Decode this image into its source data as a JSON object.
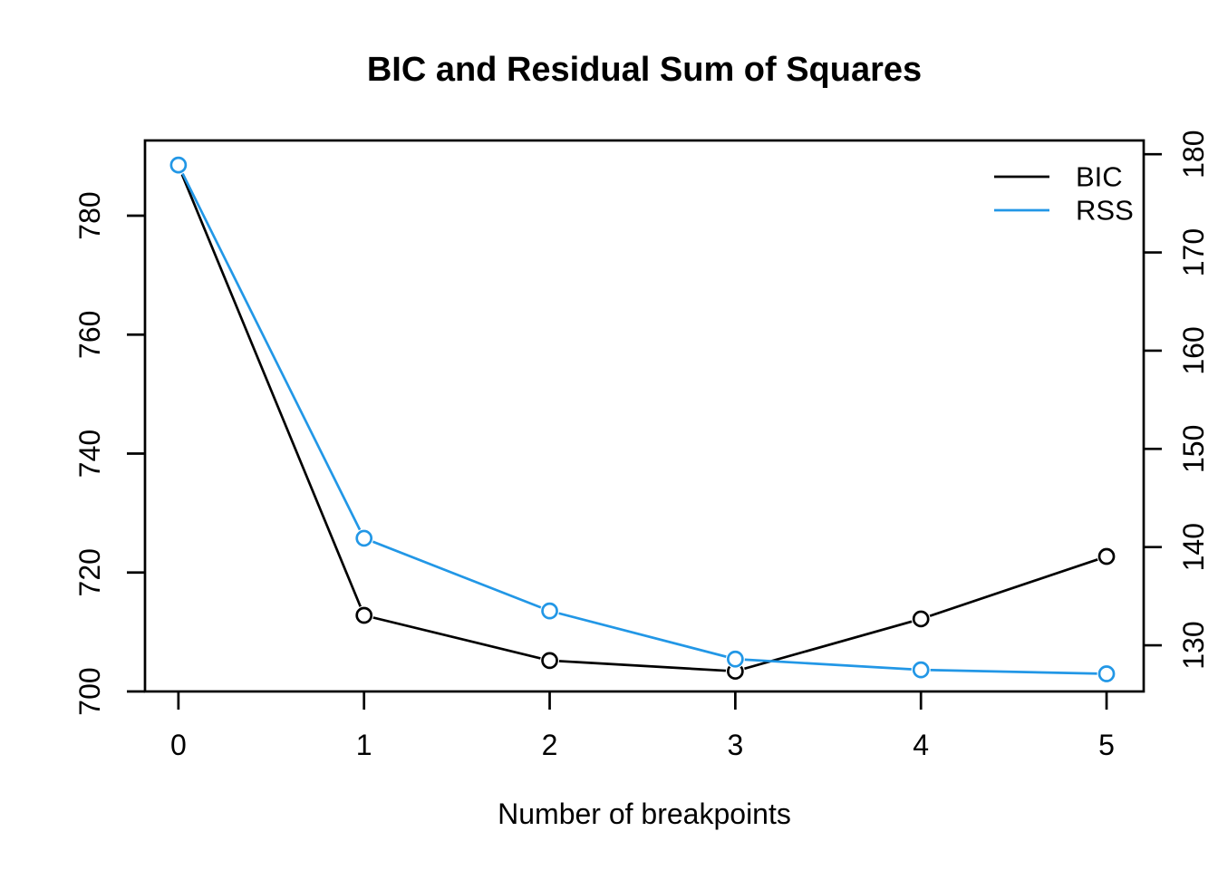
{
  "chart_data": {
    "type": "line",
    "title": "BIC and Residual Sum of Squares",
    "xlabel": "Number of breakpoints",
    "ylabel_left": "",
    "ylabel_right": "",
    "x": [
      0,
      1,
      2,
      3,
      4,
      5
    ],
    "x_ticks": [
      0,
      1,
      2,
      3,
      4,
      5
    ],
    "xlim": [
      -0.18,
      5.2
    ],
    "series": [
      {
        "name": "BIC",
        "color": "#000000",
        "axis": "left",
        "marker": "open-circle",
        "values": [
          788.4,
          712.8,
          705.2,
          703.4,
          712.2,
          722.7
        ]
      },
      {
        "name": "RSS",
        "color": "#2297E6",
        "axis": "right",
        "marker": "open-circle",
        "values": [
          178.9,
          140.9,
          133.5,
          128.6,
          127.5,
          127.1
        ]
      }
    ],
    "left_axis": {
      "ticks": [
        700,
        720,
        740,
        760,
        780
      ],
      "lim": [
        700,
        792.65
      ]
    },
    "right_axis": {
      "ticks": [
        130,
        140,
        150,
        160,
        170,
        180
      ],
      "lim": [
        125.3,
        181.4
      ]
    },
    "legend": {
      "position": "topright",
      "entries": [
        "BIC",
        "RSS"
      ]
    },
    "grid": false,
    "background": "#ffffff",
    "axis_color": "#000000"
  }
}
